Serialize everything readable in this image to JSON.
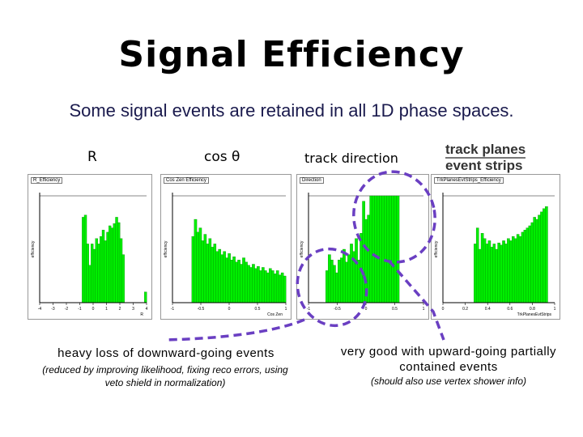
{
  "slide": {
    "title": "Signal Efficiency",
    "subtitle": "Some signal events are retained in all 1D phase spaces."
  },
  "labels": {
    "r": "R",
    "cos_theta": "cos θ",
    "track_direction": "track direction",
    "track_planes_line1": "track planes",
    "track_planes_line2": "event strips"
  },
  "plots": [
    {
      "tab": "R_Efficiency",
      "xlabel": "R",
      "ylabel": "efficiency",
      "xticks": [
        "-4",
        "-3",
        "-2",
        "-1",
        "0",
        "1",
        "2",
        "3",
        "4"
      ]
    },
    {
      "tab": "Cos Zen Efficiency",
      "xlabel": "Cos Zen",
      "ylabel": "efficiency",
      "xticks": [
        "-1",
        "-0.5",
        "0",
        "0.5",
        "1"
      ]
    },
    {
      "tab": "Direction",
      "xlabel": "",
      "ylabel": "efficiency",
      "xticks": [
        "-1",
        "-0.5",
        "0",
        "0.5",
        "1"
      ]
    },
    {
      "tab": "TrkPlanesEvtStrips_Efficiency",
      "xlabel": "TrkPlanesEvtStrips",
      "ylabel": "efficiency",
      "xticks": [
        "0",
        "0.2",
        "0.4",
        "0.6",
        "0.8",
        "1"
      ]
    }
  ],
  "annotations": {
    "left_main": "heavy loss of downward-going events",
    "left_sub": "(reduced by improving likelihood, fixing reco errors, using veto shield in normalization)",
    "right_main": "very good with upward-going partially contained events",
    "right_sub": "(should also use vertex shower info)"
  },
  "colors": {
    "histogram_fill": "#00ee00",
    "dashed_annotation": "#6a3fc2",
    "subtitle": "#1a1a4d"
  }
}
